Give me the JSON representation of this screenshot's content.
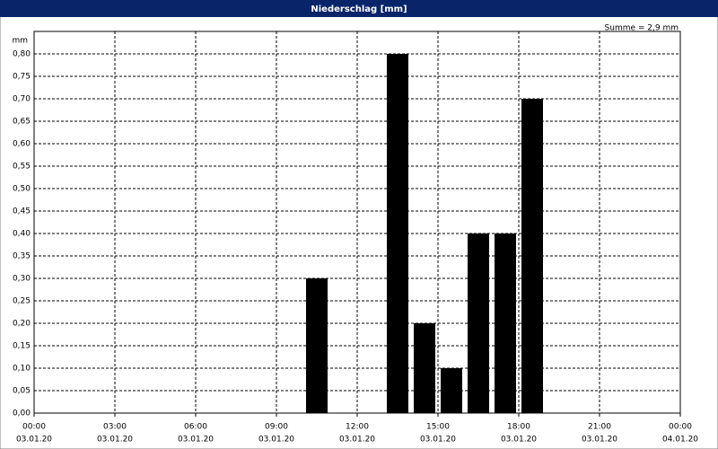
{
  "chart_data": {
    "type": "bar",
    "title": "Niederschlag [mm]",
    "annotation": "Summe = 2,9 mm",
    "y_label": "mm",
    "x": [
      10.5,
      13.5,
      14.5,
      15.5,
      16.5,
      17.5,
      18.5
    ],
    "values": [
      0.3,
      0.8,
      0.2,
      0.1,
      0.4,
      0.4,
      0.7
    ],
    "color": "#000000",
    "grid": true,
    "xlim": [
      0,
      24
    ],
    "xticks": [
      {
        "value": 0,
        "label": [
          "00:00",
          "03.01.20"
        ]
      },
      {
        "value": 3,
        "label": [
          "03:00",
          "03.01.20"
        ]
      },
      {
        "value": 6,
        "label": [
          "06:00",
          "03.01.20"
        ]
      },
      {
        "value": 9,
        "label": [
          "09:00",
          "03.01.20"
        ]
      },
      {
        "value": 12,
        "label": [
          "12:00",
          "03.01.20"
        ]
      },
      {
        "value": 15,
        "label": [
          "15:00",
          "03.01.20"
        ]
      },
      {
        "value": 18,
        "label": [
          "18:00",
          "03.01.20"
        ]
      },
      {
        "value": 21,
        "label": [
          "21:00",
          "03.01.20"
        ]
      },
      {
        "value": 24,
        "label": [
          "00:00",
          "04.01.20"
        ]
      }
    ],
    "ylim": [
      0,
      0.85
    ],
    "yticks": [
      {
        "value": 0,
        "label": "0,00"
      },
      {
        "value": 0.05,
        "label": "0,05"
      },
      {
        "value": 0.1,
        "label": "0,10"
      },
      {
        "value": 0.15,
        "label": "0,15"
      },
      {
        "value": 0.2,
        "label": "0,20"
      },
      {
        "value": 0.25,
        "label": "0,25"
      },
      {
        "value": 0.3,
        "label": "0,30"
      },
      {
        "value": 0.35,
        "label": "0,35"
      },
      {
        "value": 0.4,
        "label": "0,40"
      },
      {
        "value": 0.45,
        "label": "0,45"
      },
      {
        "value": 0.5,
        "label": "0,50"
      },
      {
        "value": 0.55,
        "label": "0,55"
      },
      {
        "value": 0.6,
        "label": "0,60"
      },
      {
        "value": 0.65,
        "label": "0,65"
      },
      {
        "value": 0.7,
        "label": "0,70"
      },
      {
        "value": 0.75,
        "label": "0,75"
      },
      {
        "value": 0.8,
        "label": "0,80"
      }
    ]
  }
}
